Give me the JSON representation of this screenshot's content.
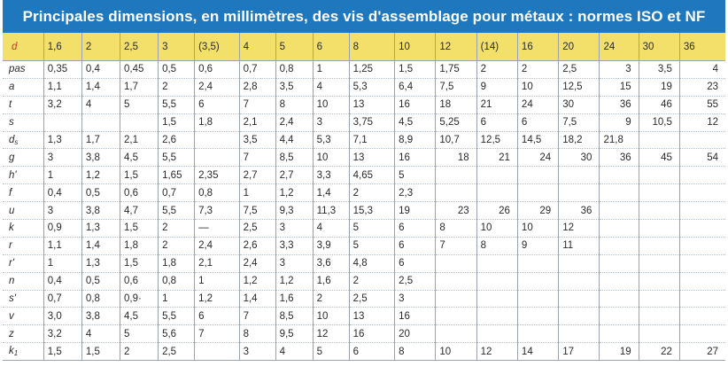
{
  "title": "Principales dimensions, en millimètres, des vis d'assemblage pour métaux  : normes ISO et NF",
  "header": [
    "d",
    "1,6",
    "2",
    "2,5",
    "3",
    "(3,5)",
    "4",
    "5",
    "6",
    "8",
    "10",
    "12",
    "(14)",
    "16",
    "20",
    "24",
    "30",
    "36"
  ],
  "rows": [
    {
      "label": "pas",
      "cells": [
        "0,35",
        "0,4",
        "0,45",
        "0,5",
        "0,6",
        "0,7",
        "0,8",
        "1",
        "1,25",
        "1,5",
        "1,75",
        "2",
        "2",
        "2,5",
        "3",
        "3,5",
        "4"
      ]
    },
    {
      "label": "a",
      "cells": [
        "1,1",
        "1,4",
        "1,7",
        "2",
        "2,4",
        "2,8",
        "3,5",
        "4",
        "5,3",
        "6,4",
        "7,5",
        "9",
        "10",
        "12,5",
        "15",
        "19",
        "23"
      ]
    },
    {
      "label": "t",
      "cells": [
        "3,2",
        "4",
        "5",
        "5,5",
        "6",
        "7",
        "8",
        "10",
        "13",
        "16",
        "18",
        "21",
        "24",
        "30",
        "36",
        "46",
        "55"
      ]
    },
    {
      "label": "s",
      "cells": [
        "",
        "",
        "",
        "1,5",
        "1,8",
        "2,1",
        "2,4",
        "3",
        "3,75",
        "4,5",
        "5,25",
        "6",
        "6",
        "7,5",
        "9",
        "10,5",
        "12"
      ]
    },
    {
      "label": "d",
      "sub": "s",
      "cells": [
        "1,3",
        "1,7",
        "2,1",
        "2,6",
        "",
        "3,5",
        "4,4",
        "5,3",
        "7,1",
        "8,9",
        "10,7",
        "12,5",
        "14,5",
        "18,2",
        "21,8",
        "",
        ""
      ]
    },
    {
      "label": "g",
      "cells": [
        "3",
        "3,8",
        "4,5",
        "5,5",
        "",
        "7",
        "8,5",
        "10",
        "13",
        "16",
        "18",
        "21",
        "24",
        "30",
        "36",
        "45",
        "54"
      ]
    },
    {
      "label": "h'",
      "cells": [
        "1",
        "1,2",
        "1,5",
        "1,65",
        "2,35",
        "2,7",
        "2,7",
        "3,3",
        "4,65",
        "5",
        "",
        "",
        "",
        "",
        "",
        "",
        ""
      ]
    },
    {
      "label": "f",
      "cells": [
        "0,4",
        "0,5",
        "0,6",
        "0,7",
        "0,8",
        "1",
        "1,2",
        "1,4",
        "2",
        "2,3",
        "",
        "",
        "",
        "",
        "",
        "",
        ""
      ]
    },
    {
      "label": "u",
      "cells": [
        "3",
        "3,8",
        "4,7",
        "5,5",
        "7,3",
        "7,5",
        "9,3",
        "11,3",
        "15,3",
        "19",
        "23",
        "26",
        "29",
        "36",
        "",
        "",
        ""
      ]
    },
    {
      "label": "k",
      "cells": [
        "0,9",
        "1,3",
        "1,5",
        "2",
        "—",
        "2,5",
        "3",
        "4",
        "5",
        "6",
        "8",
        "10",
        "10",
        "12",
        "",
        "",
        ""
      ]
    },
    {
      "label": "r",
      "cells": [
        "1,1",
        "1,4",
        "1,8",
        "2",
        "2,4",
        "2,6",
        "3,3",
        "3,9",
        "5",
        "6",
        "7",
        "8",
        "9",
        "11",
        "",
        "",
        ""
      ]
    },
    {
      "label": "r'",
      "cells": [
        "1",
        "1,3",
        "1,5",
        "1,8",
        "2,1",
        "2,4",
        "3",
        "3,6",
        "4,8",
        "6",
        "",
        "",
        "",
        "",
        "",
        "",
        ""
      ]
    },
    {
      "label": "n",
      "cells": [
        "0,4",
        "0,5",
        "0,6",
        "0,8",
        "1",
        "1,2",
        "1,2",
        "1,6",
        "2",
        "2,5",
        "",
        "",
        "",
        "",
        "",
        "",
        ""
      ]
    },
    {
      "label": "s'",
      "cells": [
        "0,7",
        "0,8",
        "0,9·",
        "1",
        "1,2",
        "1,4",
        "1,6",
        "2",
        "2,5",
        "3",
        "",
        "",
        "",
        "",
        "",
        "",
        ""
      ]
    },
    {
      "label": "v",
      "cells": [
        "3,0",
        "3,8",
        "4,5",
        "5,5",
        "6",
        "7",
        "8,5",
        "10",
        "13",
        "16",
        "",
        "",
        "",
        "",
        "",
        "",
        ""
      ]
    },
    {
      "label": "z",
      "cells": [
        "3,2",
        "4",
        "5",
        "5,6",
        "7",
        "8",
        "9,5",
        "12",
        "16",
        "20",
        "",
        "",
        "",
        "",
        "",
        "",
        ""
      ]
    },
    {
      "label": "k",
      "sub": "1",
      "cells": [
        "1,5",
        "1,5",
        "2",
        "2,5",
        "",
        "3",
        "4",
        "5",
        "6",
        "8",
        "10",
        "12",
        "14",
        "17",
        "19",
        "22",
        "27"
      ]
    }
  ]
}
